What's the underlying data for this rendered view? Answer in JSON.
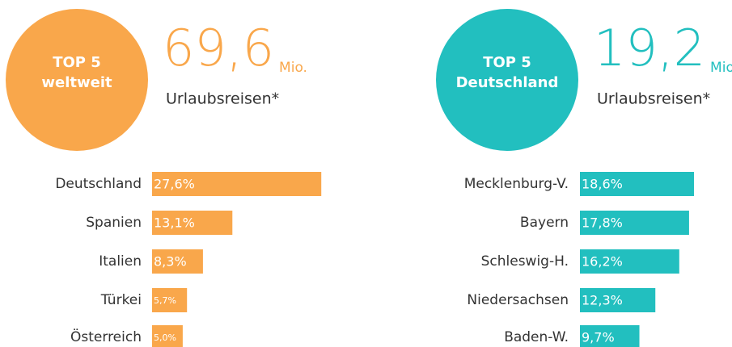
{
  "chart_data": [
    {
      "type": "bar",
      "orientation": "horizontal",
      "badge": [
        "TOP 5",
        "weltweit"
      ],
      "total": "69,6",
      "unit": "Mio.",
      "subtitle": "Urlaubsreisen*",
      "color": "#f9a74b",
      "categories": [
        "Deutschland",
        "Spanien",
        "Italien",
        "Türkei",
        "Österreich"
      ],
      "values": [
        27.6,
        13.1,
        8.3,
        5.7,
        5.0
      ],
      "value_labels": [
        "27,6%",
        "13,1%",
        "8,3%",
        "5,7%",
        "5,0%"
      ]
    },
    {
      "type": "bar",
      "orientation": "horizontal",
      "badge": [
        "TOP 5",
        "Deutschland"
      ],
      "total": "19,2",
      "unit": "Mio.",
      "subtitle": "Urlaubsreisen*",
      "color": "#22bfbf",
      "categories": [
        "Mecklenburg-V.",
        "Bayern",
        "Schleswig-H.",
        "Niedersachsen",
        "Baden-W."
      ],
      "values": [
        18.6,
        17.8,
        16.2,
        12.3,
        9.7
      ],
      "value_labels": [
        "18,6%",
        "17,8%",
        "16,2%",
        "12,3%",
        "9,7%"
      ]
    }
  ]
}
